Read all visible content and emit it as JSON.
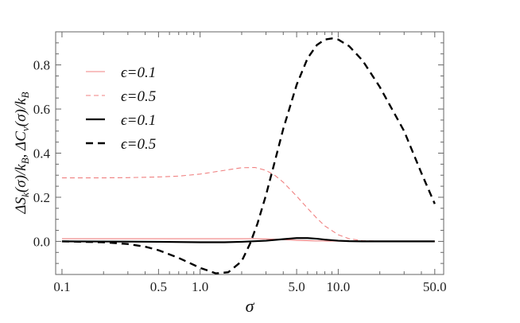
{
  "chart_data": {
    "type": "line",
    "title": "",
    "xlabel": "σ",
    "ylabel": "ΔS_k(σ)/k_B, ΔC_v(σ)/k_B",
    "ylabel_parts": {
      "a": "ΔS",
      "a_sub": "k",
      "b": "(σ)/k",
      "b_sub": "B",
      "sep": ",  ",
      "c": "ΔC",
      "c_sub": "v",
      "d": "(σ)/k",
      "d_sub": "B"
    },
    "x_scale": "log",
    "xlim": [
      0.09,
      58
    ],
    "ylim": [
      -0.15,
      0.95
    ],
    "x_ticks": [
      0.1,
      0.5,
      1.0,
      5.0,
      10.0,
      50.0
    ],
    "x_tick_labels": [
      "0.1",
      "0.5",
      "1.0",
      "5.0",
      "10.0",
      "50.0"
    ],
    "y_ticks": [
      0.0,
      0.2,
      0.4,
      0.6,
      0.8
    ],
    "y_tick_labels": [
      "0.0",
      "0.2",
      "0.4",
      "0.6",
      "0.8"
    ],
    "grid": false,
    "legend_position": "top-left",
    "series": [
      {
        "name": "ϵ=0.1",
        "color": "#f08080",
        "style": "thin-solid",
        "x": [
          0.1,
          0.2,
          0.5,
          1.0,
          1.5,
          2.0,
          2.5,
          3.0,
          4.0,
          5.0,
          7.0,
          10.0,
          15.0,
          20.0,
          30.0,
          50.0
        ],
        "y": [
          0.012,
          0.012,
          0.012,
          0.012,
          0.012,
          0.012,
          0.012,
          0.011,
          0.008,
          0.005,
          0.002,
          0.001,
          0.0,
          0.0,
          0.0,
          0.0
        ]
      },
      {
        "name": "ϵ=0.5",
        "color": "#f08080",
        "style": "thin-dashed",
        "x": [
          0.1,
          0.2,
          0.3,
          0.5,
          0.7,
          1.0,
          1.5,
          2.0,
          2.5,
          3.0,
          3.5,
          4.0,
          5.0,
          6.0,
          7.0,
          8.0,
          10.0,
          12.0,
          15.0,
          20.0,
          30.0,
          50.0
        ],
        "y": [
          0.288,
          0.288,
          0.289,
          0.292,
          0.296,
          0.305,
          0.322,
          0.334,
          0.335,
          0.322,
          0.298,
          0.268,
          0.205,
          0.15,
          0.105,
          0.07,
          0.03,
          0.012,
          0.003,
          0.001,
          0.0,
          0.0
        ]
      },
      {
        "name": "ϵ=0.1",
        "color": "#000000",
        "style": "thick-solid",
        "x": [
          0.1,
          0.3,
          0.5,
          1.0,
          1.5,
          2.0,
          3.0,
          4.0,
          5.0,
          6.0,
          7.0,
          8.0,
          10.0,
          12.0,
          15.0,
          20.0,
          30.0,
          50.0
        ],
        "y": [
          0.0,
          -0.001,
          -0.002,
          -0.004,
          -0.004,
          -0.002,
          0.003,
          0.01,
          0.015,
          0.015,
          0.012,
          0.008,
          0.003,
          0.001,
          0.0,
          0.0,
          0.0,
          0.0
        ]
      },
      {
        "name": "ϵ=0.5",
        "color": "#000000",
        "style": "thick-dashed",
        "x": [
          0.1,
          0.2,
          0.3,
          0.4,
          0.5,
          0.7,
          1.0,
          1.3,
          1.6,
          2.0,
          2.3,
          2.6,
          3.0,
          3.5,
          4.0,
          5.0,
          6.0,
          7.0,
          8.0,
          9.0,
          10.0,
          12.0,
          15.0,
          20.0,
          30.0,
          40.0,
          50.0
        ],
        "y": [
          0.0,
          -0.004,
          -0.012,
          -0.024,
          -0.04,
          -0.075,
          -0.12,
          -0.145,
          -0.14,
          -0.09,
          -0.01,
          0.08,
          0.21,
          0.37,
          0.51,
          0.71,
          0.83,
          0.89,
          0.915,
          0.92,
          0.915,
          0.885,
          0.82,
          0.7,
          0.5,
          0.31,
          0.17
        ]
      }
    ]
  }
}
